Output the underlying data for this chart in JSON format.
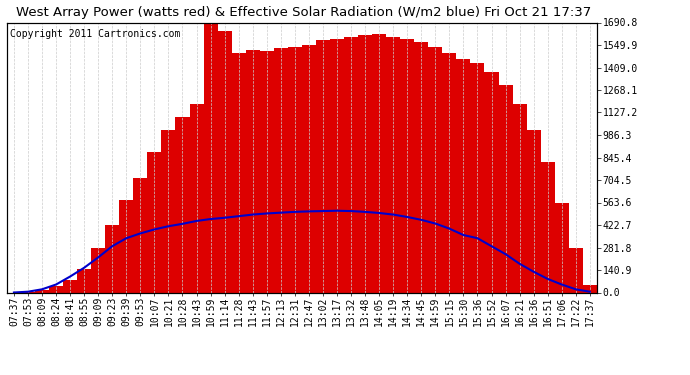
{
  "title": "West Array Power (watts red) & Effective Solar Radiation (W/m2 blue) Fri Oct 21 17:37",
  "copyright": "Copyright 2011 Cartronics.com",
  "x_labels": [
    "07:37",
    "07:53",
    "08:09",
    "08:24",
    "08:41",
    "08:55",
    "09:09",
    "09:23",
    "09:39",
    "09:53",
    "10:07",
    "10:21",
    "10:28",
    "10:43",
    "10:59",
    "11:14",
    "11:28",
    "11:43",
    "11:57",
    "12:13",
    "12:31",
    "12:47",
    "13:02",
    "13:17",
    "13:32",
    "13:48",
    "14:05",
    "14:19",
    "14:34",
    "14:45",
    "14:59",
    "15:15",
    "15:30",
    "15:36",
    "15:52",
    "16:07",
    "16:21",
    "16:36",
    "16:51",
    "17:06",
    "17:22",
    "17:37"
  ],
  "y_right_labels": [
    "1690.8",
    "1549.9",
    "1409.0",
    "1268.1",
    "1127.2",
    "986.3",
    "845.4",
    "704.5",
    "563.6",
    "422.7",
    "281.8",
    "140.9",
    "0.0"
  ],
  "y_ticks": [
    1690.8,
    1549.9,
    1409.0,
    1268.1,
    1127.2,
    986.3,
    845.4,
    704.5,
    563.6,
    422.7,
    281.8,
    140.9,
    0.0
  ],
  "y_max": 1690.8,
  "y_min": 0.0,
  "background_color": "#ffffff",
  "grid_color": "#cccccc",
  "bar_color": "#dd0000",
  "line_color": "#0000cc",
  "title_fontsize": 9.5,
  "tick_fontsize": 7,
  "copyright_fontsize": 7,
  "power_smooth": [
    0,
    5,
    15,
    40,
    80,
    150,
    280,
    420,
    580,
    720,
    880,
    1020,
    1100,
    1180,
    1690,
    1640,
    1500,
    1520,
    1510,
    1530,
    1540,
    1550,
    1580,
    1590,
    1600,
    1610,
    1620,
    1600,
    1590,
    1570,
    1540,
    1500,
    1460,
    1440,
    1380,
    1300,
    1180,
    1020,
    820,
    560,
    280,
    50
  ],
  "radiation_smooth": [
    0,
    5,
    20,
    50,
    100,
    155,
    220,
    290,
    340,
    370,
    395,
    415,
    430,
    448,
    460,
    468,
    478,
    488,
    495,
    500,
    505,
    508,
    510,
    512,
    510,
    505,
    498,
    488,
    473,
    455,
    432,
    400,
    360,
    340,
    290,
    240,
    180,
    130,
    85,
    50,
    20,
    5
  ]
}
